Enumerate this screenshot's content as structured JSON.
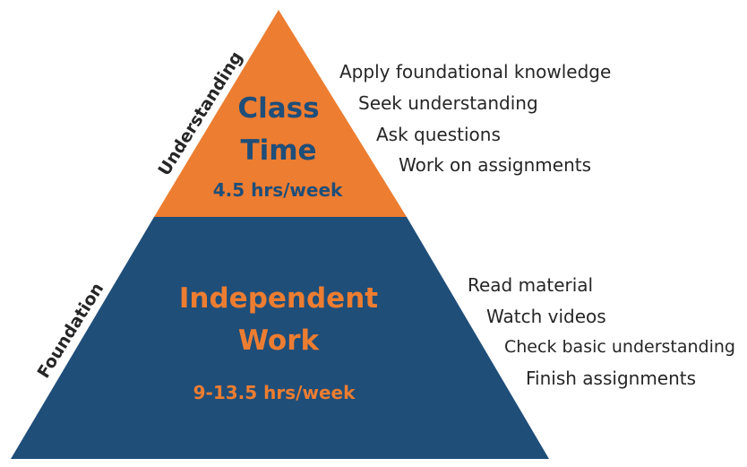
{
  "colors": {
    "top_fill": "#ED7D31",
    "bottom_fill": "#1F4E79",
    "top_text": "#1F4E79",
    "bottom_text": "#ED7D31",
    "side_text": "#262626"
  },
  "top_tier": {
    "title_line1": "Class",
    "title_line2": "Time",
    "hours_value": "4.5",
    "hours_unit": "hrs/week",
    "side_label": "Understanding",
    "activities": [
      "Apply foundational knowledge",
      "Seek understanding",
      "Ask questions",
      "Work on assignments"
    ]
  },
  "bottom_tier": {
    "title_line1": "Independent",
    "title_line2": "Work",
    "hours_value": "9-13.5",
    "hours_unit": "hrs/week",
    "side_label": "Foundation",
    "activities": [
      "Read material",
      "Watch videos",
      "Check basic understanding",
      "Finish assignments"
    ]
  }
}
